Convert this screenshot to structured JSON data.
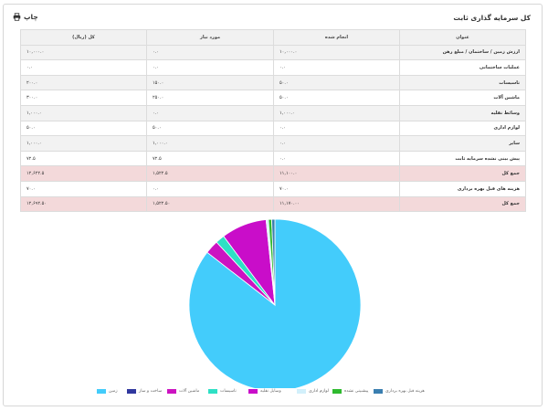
{
  "header": {
    "title": "کل سرمایه گذاری ثابت",
    "print_label": "چاپ",
    "print_icon": "printer-icon"
  },
  "table": {
    "columns": [
      "عنوان",
      "انجام شده",
      "مورد نیاز",
      "کل (ریال)"
    ],
    "rows": [
      {
        "title": "ارزش زمین / ساختمان / مبلغ رهن",
        "done": "۱۰,۰۰۰.۰",
        "needed": "۰.۰",
        "total": "۱۰,۰۰۰.۰",
        "kind": "odd"
      },
      {
        "title": "عملیات ساختمانی",
        "done": "۰.۰",
        "needed": "۰.۰",
        "total": "۰.۰",
        "kind": "even"
      },
      {
        "title": "تاسیسات",
        "done": "۵۰.۰",
        "needed": "۱۵۰.۰",
        "total": "۲۰۰.۰",
        "kind": "odd"
      },
      {
        "title": "ماشین آلات",
        "done": "۵۰.۰",
        "needed": "۲۵۰.۰",
        "total": "۳۰۰.۰",
        "kind": "even"
      },
      {
        "title": "وسائط نقلیه",
        "done": "۱,۰۰۰.۰",
        "needed": "۰.۰",
        "total": "۱,۰۰۰.۰",
        "kind": "odd"
      },
      {
        "title": "لوازم اداری",
        "done": "۰.۰",
        "needed": "۵۰.۰",
        "total": "۵۰.۰",
        "kind": "even"
      },
      {
        "title": "سایر",
        "done": "۰.۰",
        "needed": "۱,۰۰۰.۰",
        "total": "۱,۰۰۰.۰",
        "kind": "odd"
      },
      {
        "title": "پیش بینی نشده سرمایه ثابت",
        "done": "۰.۰",
        "needed": "۷۲.۵",
        "total": "۷۲.۵",
        "kind": "even"
      },
      {
        "title": "جمع کل",
        "done": "۱۱,۱۰۰.۰",
        "needed": "۱,۵۲۲.۵",
        "total": "۱۲,۶۲۲.۵",
        "kind": "total"
      },
      {
        "title": "هزینه های قبل بهره برداری",
        "done": "۷۰.۰",
        "needed": "۰.۰",
        "total": "۷۰.۰",
        "kind": "even"
      },
      {
        "title": "جمع کل",
        "done": "۱۱,۱۷۰.۰۰",
        "needed": "۱,۵۲۲.۵۰",
        "total": "۱۲,۶۹۲.۵۰",
        "kind": "total"
      }
    ]
  },
  "chart_data": {
    "type": "pie",
    "title": "",
    "slices": [
      {
        "label": "زمین",
        "value": 10000,
        "color": "#43ccfb"
      },
      {
        "label": "ساخت و ساز",
        "value": 0,
        "color": "#30389e"
      },
      {
        "label": "ماشین آلات",
        "value": 300,
        "color": "#cc13c1"
      },
      {
        "label": "تاسیسات",
        "value": 200,
        "color": "#2ee0c5"
      },
      {
        "label": "وسایل نقلیه",
        "value": 1000,
        "color": "#c90dc9"
      },
      {
        "label": "لوازم اداری",
        "value": 50,
        "color": "#d2f0fb"
      },
      {
        "label": "پیشبینی نشده",
        "value": 72.5,
        "color": "#2fba2f"
      },
      {
        "label": "هزینه قبل بهره برداری",
        "value": 70,
        "color": "#3a7fb0"
      }
    ],
    "legend_position": "bottom"
  }
}
